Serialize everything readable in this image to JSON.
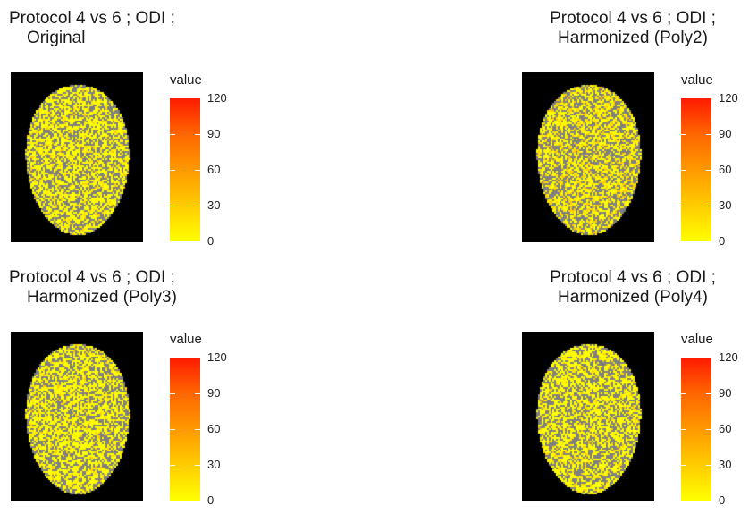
{
  "chart_data": [
    {
      "type": "heatmap",
      "title": "Protocol 4 vs 6 ; ODI ;",
      "subtitle": "Original",
      "legend": {
        "title": "value",
        "ticks": [
          0,
          30,
          60,
          90,
          120
        ],
        "range": [
          0,
          120
        ],
        "colors": [
          "#ffff00",
          "#ffcc00",
          "#ff9900",
          "#ff6600",
          "#ff1a00"
        ],
        "placement": "right"
      },
      "background_color": "#000000",
      "missing_color": "#7f7f7f"
    },
    {
      "type": "heatmap",
      "title": "Protocol 4 vs 6 ; ODI ;",
      "subtitle": "Harmonized (Poly2)",
      "legend": {
        "title": "value",
        "ticks": [
          0,
          30,
          60,
          90,
          120
        ],
        "range": [
          0,
          120
        ],
        "colors": [
          "#ffff00",
          "#ffcc00",
          "#ff9900",
          "#ff6600",
          "#ff1a00"
        ],
        "placement": "right"
      },
      "background_color": "#000000",
      "missing_color": "#7f7f7f"
    },
    {
      "type": "heatmap",
      "title": "Protocol 4 vs 6 ; ODI ;",
      "subtitle": "Harmonized (Poly3)",
      "legend": {
        "title": "value",
        "ticks": [
          0,
          30,
          60,
          90,
          120
        ],
        "range": [
          0,
          120
        ],
        "colors": [
          "#ffff00",
          "#ffcc00",
          "#ff9900",
          "#ff6600",
          "#ff1a00"
        ],
        "placement": "right"
      },
      "background_color": "#000000",
      "missing_color": "#7f7f7f"
    },
    {
      "type": "heatmap",
      "title": "Protocol 4 vs 6 ; ODI ;",
      "subtitle": "Harmonized (Poly4)",
      "legend": {
        "title": "value",
        "ticks": [
          0,
          30,
          60,
          90,
          120
        ],
        "range": [
          0,
          120
        ],
        "colors": [
          "#ffff00",
          "#ffcc00",
          "#ff9900",
          "#ff6600",
          "#ff1a00"
        ],
        "placement": "right"
      },
      "background_color": "#000000",
      "missing_color": "#7f7f7f"
    }
  ]
}
